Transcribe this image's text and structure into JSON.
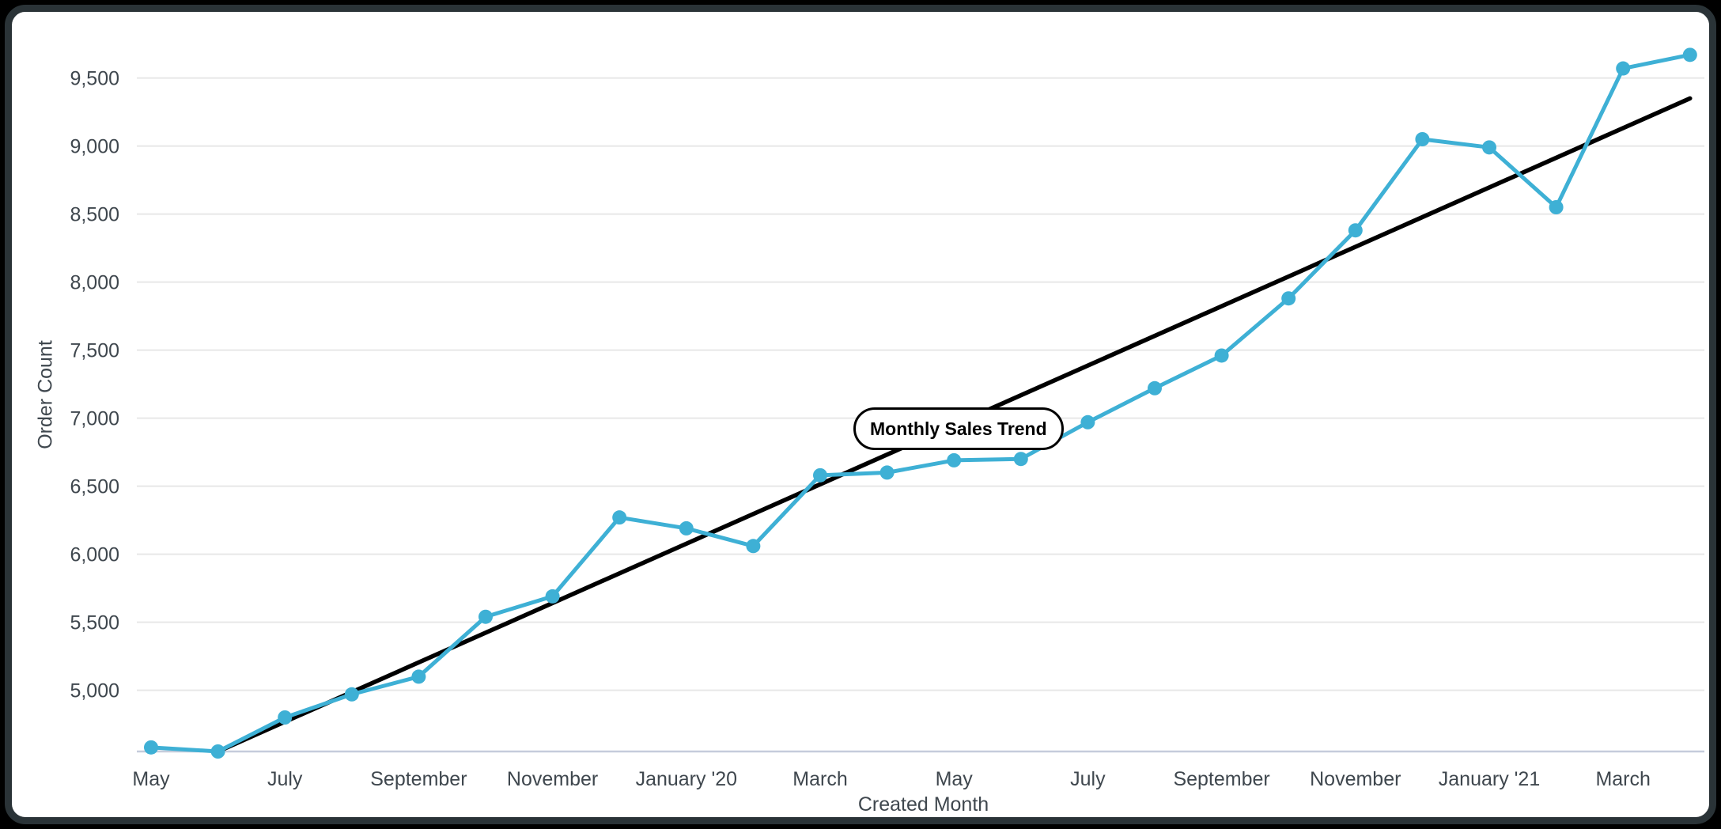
{
  "window": {
    "background_color": "#000000",
    "card_border_color": "#2a3337",
    "card_background": "#ffffff"
  },
  "chart_data": {
    "type": "line",
    "title_label": "Monthly Sales Trend",
    "xlabel": "Created Month",
    "ylabel": "Order Count",
    "categories": [
      "May 2019",
      "June 2019",
      "July 2019",
      "August 2019",
      "September 2019",
      "October 2019",
      "November 2019",
      "December 2019",
      "January 2020",
      "February 2020",
      "March 2020",
      "April 2020",
      "May 2020",
      "June 2020",
      "July 2020",
      "August 2020",
      "September 2020",
      "October 2020",
      "November 2020",
      "December 2020",
      "January 2021",
      "February 2021",
      "March 2021",
      "April 2021"
    ],
    "series": [
      {
        "name": "Order Count",
        "color": "#3eb0d5",
        "marker": "circle",
        "values": [
          4580,
          4550,
          4800,
          4970,
          5100,
          5540,
          5690,
          6270,
          6190,
          6060,
          6580,
          6600,
          6690,
          6700,
          6970,
          7220,
          7460,
          7880,
          8380,
          9050,
          8990,
          8550,
          9570,
          9670
        ]
      },
      {
        "name": "Trend line",
        "color": "#000000",
        "trend": {
          "start_index": 1,
          "start_value": 4550,
          "end_index": 23,
          "end_value": 9350
        }
      }
    ],
    "x_tick_labels": [
      "May",
      "July",
      "September",
      "November",
      "January '20",
      "March",
      "May",
      "July",
      "September",
      "November",
      "January '21",
      "March"
    ],
    "x_tick_every": 2,
    "y_ticks": [
      {
        "value": 5000,
        "label": "5,000"
      },
      {
        "value": 5500,
        "label": "5,500"
      },
      {
        "value": 6000,
        "label": "6,000"
      },
      {
        "value": 6500,
        "label": "6,500"
      },
      {
        "value": 7000,
        "label": "7,000"
      },
      {
        "value": 7500,
        "label": "7,500"
      },
      {
        "value": 8000,
        "label": "8,000"
      },
      {
        "value": 8500,
        "label": "8,500"
      },
      {
        "value": 9000,
        "label": "9,000"
      },
      {
        "value": 9500,
        "label": "9,500"
      }
    ],
    "ylim": [
      4550,
      9910
    ],
    "grid": true,
    "legend": "none",
    "grid_color": "#e8e8e8",
    "axis_line_color": "#c5ccdb",
    "tick_label_color": "#3f474e"
  }
}
